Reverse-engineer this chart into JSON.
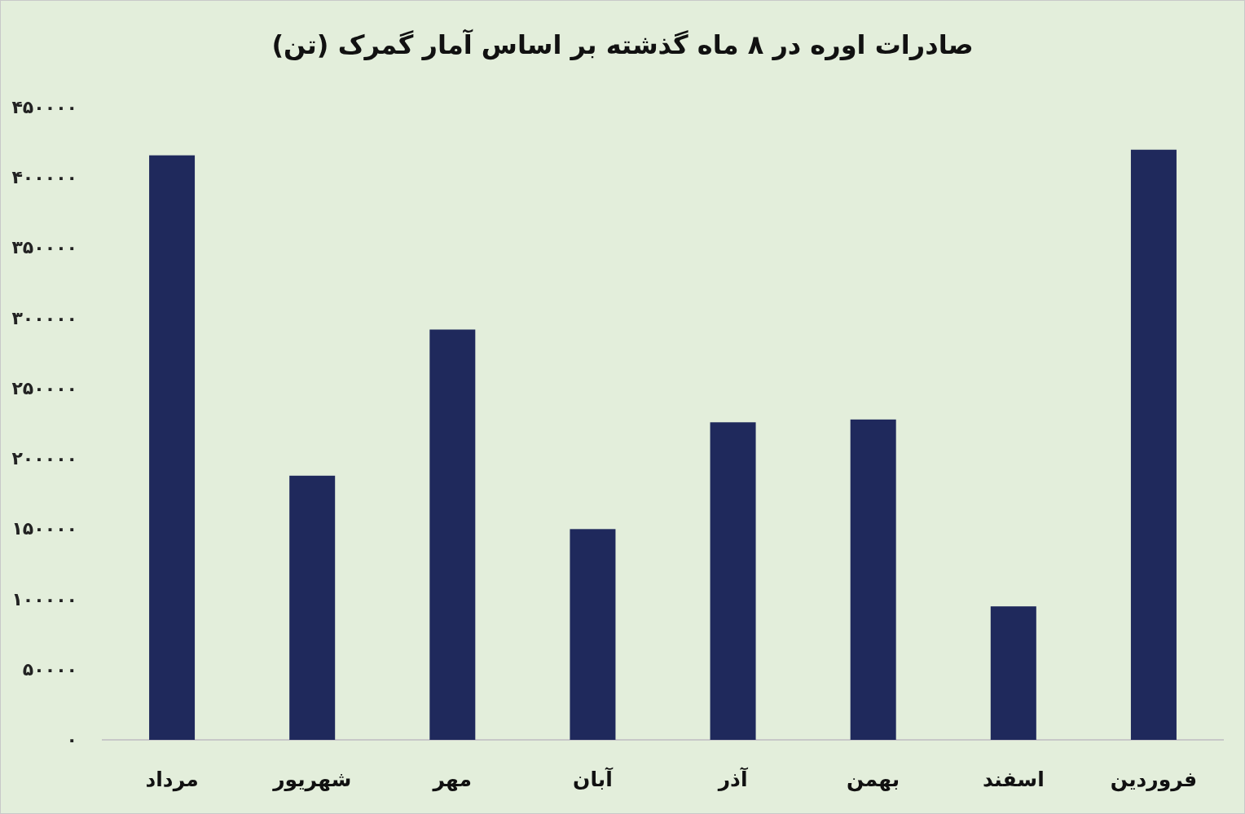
{
  "chart_data": {
    "type": "bar",
    "title": "صادرات اوره در ۸ ماه گذشته بر اساس آمار گمرک (تن)",
    "categories": [
      "مرداد",
      "شهریور",
      "مهر",
      "آبان",
      "آذر",
      "بهمن",
      "اسفند",
      "فروردین"
    ],
    "values": [
      416000,
      188000,
      292000,
      150000,
      226000,
      228000,
      95000,
      420000
    ],
    "color": "#1f295c",
    "ylim": [
      0,
      450000
    ],
    "yticks": [
      {
        "value": 0,
        "label": "۰"
      },
      {
        "value": 50000,
        "label": "۵۰۰۰۰"
      },
      {
        "value": 100000,
        "label": "۱۰۰۰۰۰"
      },
      {
        "value": 150000,
        "label": "۱۵۰۰۰۰"
      },
      {
        "value": 200000,
        "label": "۲۰۰۰۰۰"
      },
      {
        "value": 250000,
        "label": "۲۵۰۰۰۰"
      },
      {
        "value": 300000,
        "label": "۳۰۰۰۰۰"
      },
      {
        "value": 350000,
        "label": "۳۵۰۰۰۰"
      },
      {
        "value": 400000,
        "label": "۴۰۰۰۰۰"
      },
      {
        "value": 450000,
        "label": "۴۵۰۰۰۰"
      }
    ]
  }
}
